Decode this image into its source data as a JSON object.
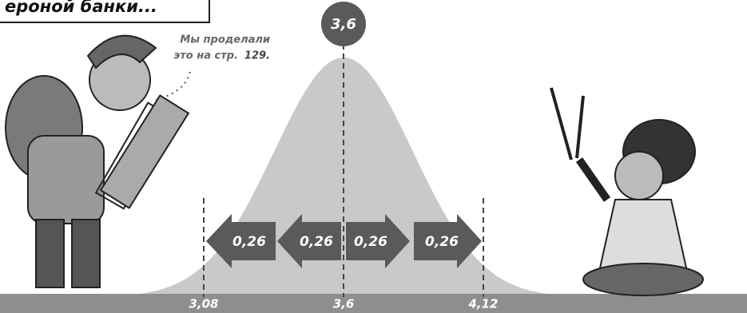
{
  "header": {
    "caption": "ероной банки..."
  },
  "note": {
    "line1": "Мы проделали",
    "line2": "это на стр.",
    "page": "129."
  },
  "mean_badge": "3,6",
  "arrows": [
    "0,26",
    "0,26",
    "0,26",
    "0,26"
  ],
  "axis_labels": [
    "3,08",
    "3,6",
    "4,12"
  ]
}
